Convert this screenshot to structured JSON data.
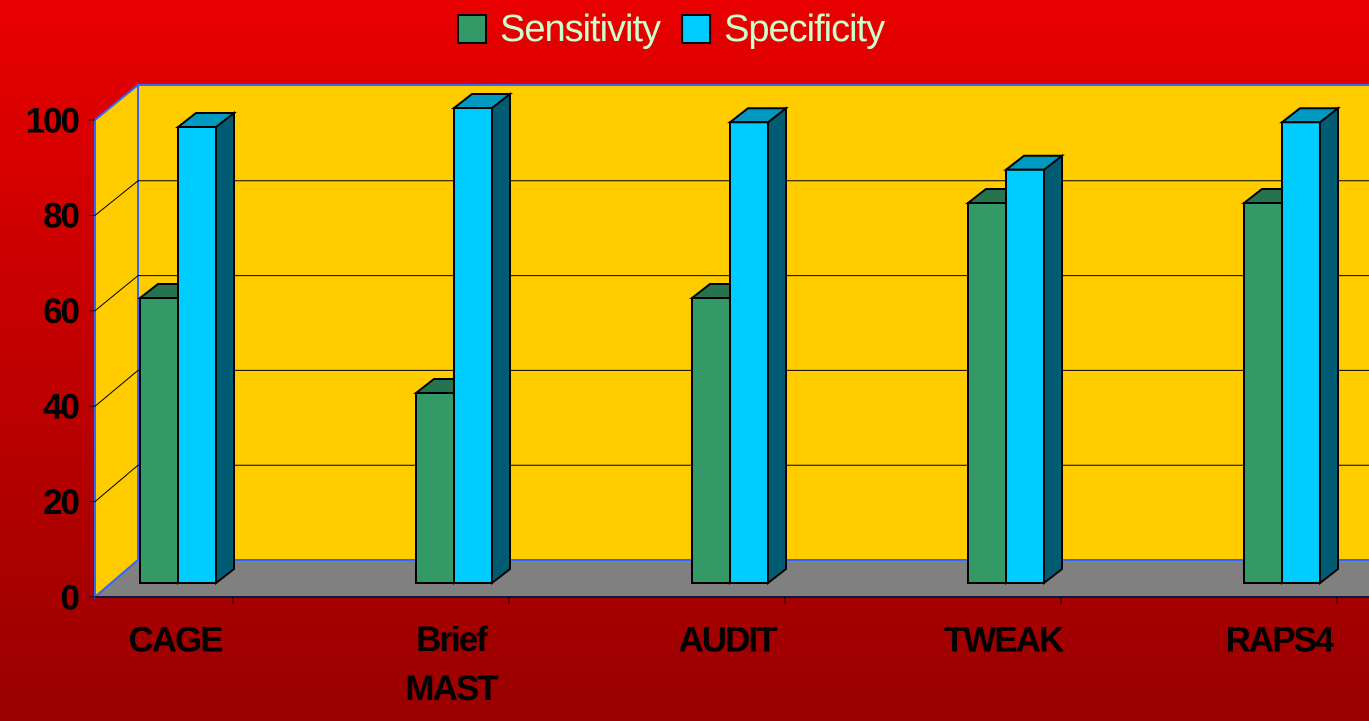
{
  "chart_data": {
    "type": "bar3d",
    "categories": [
      "CAGE",
      "Brief\nMAST",
      "AUDIT",
      "TWEAK",
      "RAPS4"
    ],
    "series": [
      {
        "name": "Sensitivity",
        "color": "#339966",
        "values": [
          60,
          40,
          60,
          80,
          80
        ]
      },
      {
        "name": "Specificity",
        "color": "#00ccff",
        "values": [
          96,
          100,
          97,
          87,
          97
        ]
      }
    ],
    "ylim": [
      0,
      100
    ],
    "yticks": [
      0,
      20,
      40,
      60,
      80,
      100
    ],
    "grid": true,
    "legend": "top"
  }
}
